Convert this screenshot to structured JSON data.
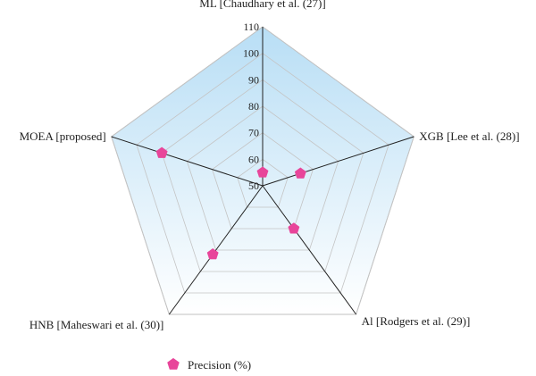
{
  "chart_data": {
    "type": "radar",
    "title": "",
    "axes": [
      "ML [Chaudhary et al. (27)]",
      "XGB [Lee et al. (28)]",
      "Al [Rodgers et al. (29)]",
      "HNB [Maheswari et al. (30)]",
      "MOEA [proposed]"
    ],
    "r_range": [
      50,
      110
    ],
    "ticks": [
      50,
      60,
      70,
      80,
      90,
      100,
      110
    ],
    "series": [
      {
        "name": "Precision (%)",
        "values": [
          55,
          65,
          70,
          82,
          90
        ],
        "color": "#e8459a"
      }
    ],
    "grid": true,
    "fill_gradient": [
      "#b8def5",
      "#ffffff"
    ],
    "legend_position": "bottom-left"
  }
}
